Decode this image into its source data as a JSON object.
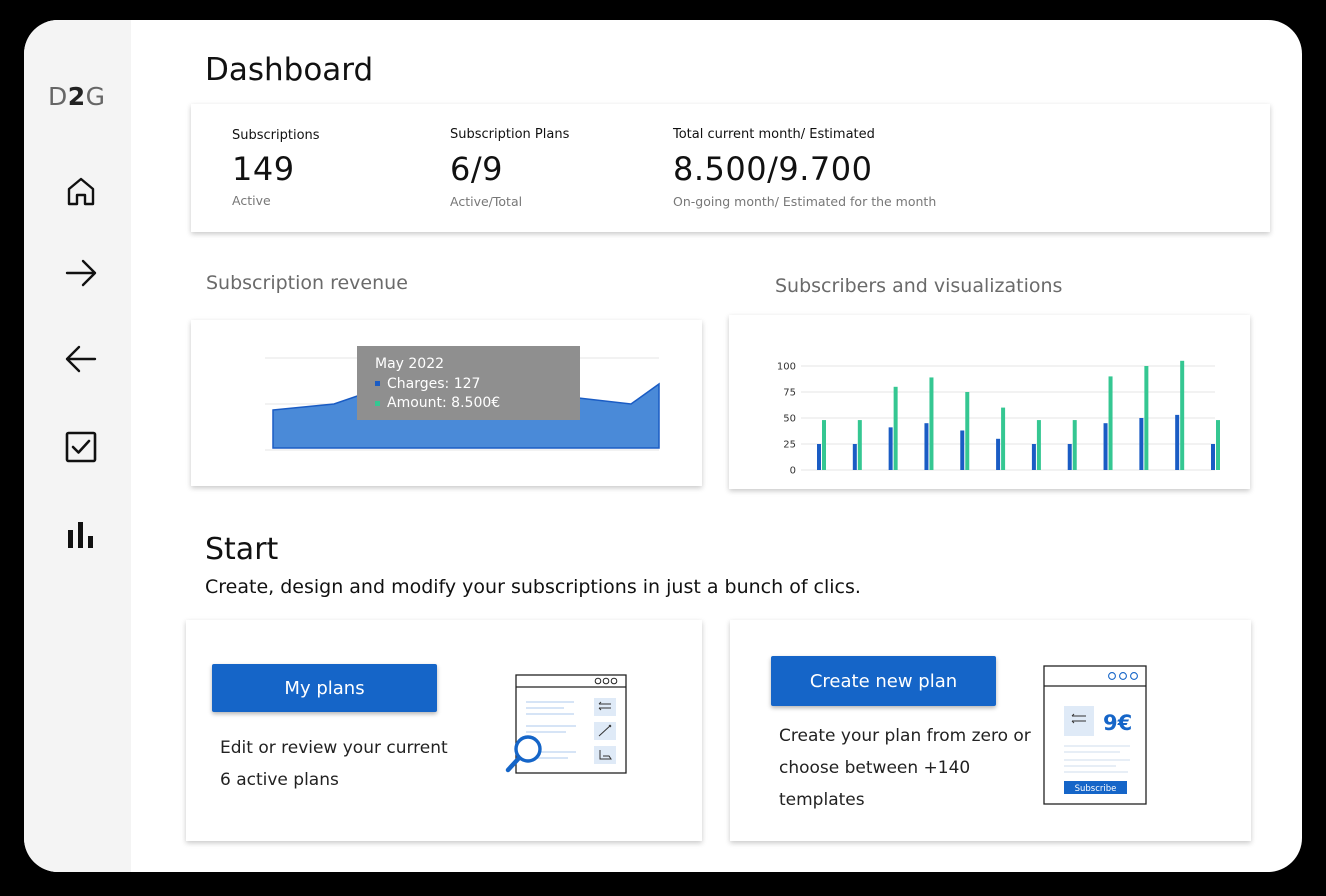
{
  "logo": {
    "prefix": "D",
    "bold": "2",
    "suffix": "G"
  },
  "nav": [
    {
      "name": "nav-home",
      "icon": "home-icon"
    },
    {
      "name": "nav-incoming",
      "icon": "arrow-right-icon"
    },
    {
      "name": "nav-outgoing",
      "icon": "arrow-left-icon"
    },
    {
      "name": "nav-tasks",
      "icon": "checkbox-icon"
    },
    {
      "name": "nav-stats",
      "icon": "bar-chart-icon"
    }
  ],
  "page_title": "Dashboard",
  "stats": [
    {
      "label": "Subscriptions",
      "value": "149",
      "sub": "Active"
    },
    {
      "label": "Subscription Plans",
      "value": "6/9",
      "sub": "Active/Total"
    },
    {
      "label": "Total current month/ Estimated",
      "value": "8.500/9.700",
      "sub": "On-going month/ Estimated for the month"
    }
  ],
  "revenue": {
    "title": "Subscription revenue",
    "tooltip": {
      "heading": "May 2022",
      "line1": "Charges: 127",
      "line2": "Amount: 8.500€"
    }
  },
  "colors": {
    "primary": "#1565c8",
    "blue_bar": "#1a5cc4",
    "green_bar": "#35c792",
    "area": "#4a8ad8"
  },
  "chart_data": {
    "type": "bar",
    "title": "Subscribers and visualizations",
    "ylim": [
      0,
      100
    ],
    "yticks": [
      "100",
      "75",
      "50",
      "25",
      "0"
    ],
    "categories": [
      "",
      "",
      "",
      "",
      "",
      "",
      "",
      "",
      "",
      "",
      "",
      ""
    ],
    "series": [
      {
        "values": [
          25,
          25,
          41,
          45,
          38,
          30,
          25,
          25,
          45,
          50,
          53,
          25
        ]
      },
      {
        "values": [
          48,
          48,
          80,
          89,
          75,
          60,
          48,
          48,
          90,
          100,
          105,
          48
        ]
      }
    ]
  },
  "start": {
    "title": "Start",
    "subtitle": "Create, design and modify your subscriptions in just a bunch of clics."
  },
  "my_plans": {
    "button": "My plans",
    "desc_line1": "Edit or review your current",
    "desc_line2": "6 active plans"
  },
  "new_plan": {
    "button": "Create new plan",
    "desc_line1": "Create your plan from zero or",
    "desc_line2": "choose between +140",
    "desc_line3": "templates",
    "price": "9€",
    "subscribe": "Subscribe"
  }
}
